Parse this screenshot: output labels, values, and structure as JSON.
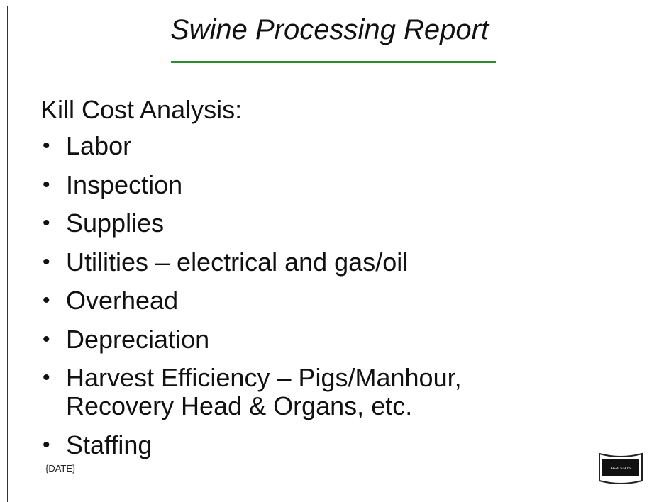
{
  "slide": {
    "title": "Swine Processing Report",
    "heading": "Kill Cost Analysis:",
    "bullets": [
      "Labor",
      "Inspection",
      "Supplies",
      "Utilities – electrical and gas/oil",
      "Overhead",
      "Depreciation",
      "Harvest Efficiency – Pigs/Manhour, Recovery Head & Organs, etc.",
      "Staffing"
    ],
    "date": "{DATE}",
    "logo": "AGRI STATS"
  }
}
